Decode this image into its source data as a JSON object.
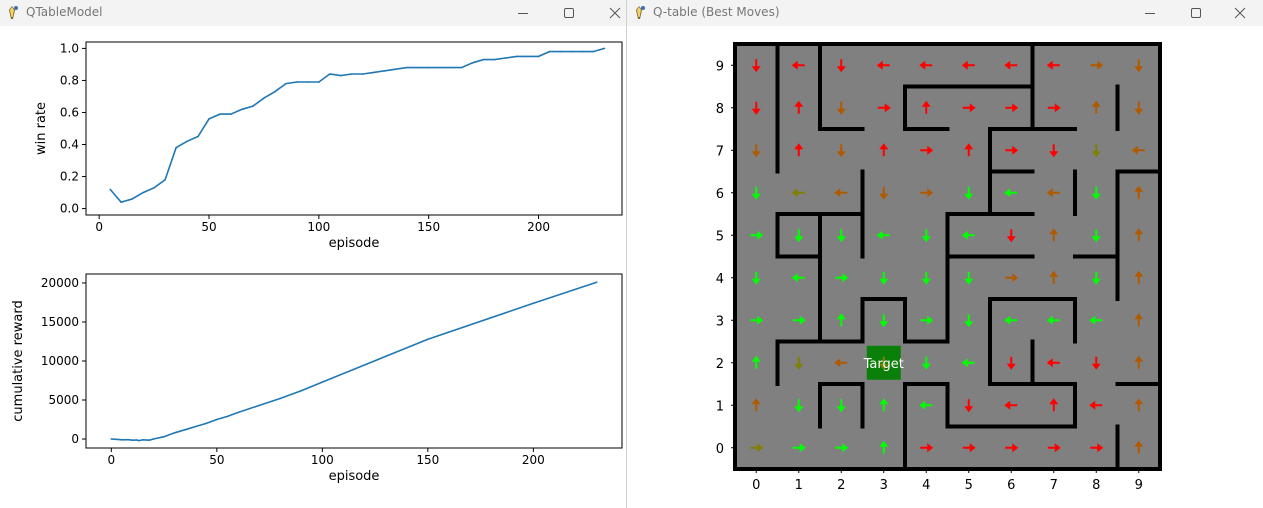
{
  "windows": [
    {
      "title": "QTableModel"
    },
    {
      "title": "Q-table (Best Moves)"
    }
  ],
  "icons": {
    "app": "python-feather-icon",
    "minimize": "minimize-icon",
    "maximize": "maximize-icon",
    "close": "close-icon"
  },
  "chart_data": [
    {
      "type": "line",
      "xlabel": "episode",
      "ylabel": "win rate",
      "xlim": [
        -6,
        238
      ],
      "ylim": [
        -0.04,
        1.04
      ],
      "xticks": [
        0,
        50,
        100,
        150,
        200
      ],
      "yticks": [
        0.0,
        0.2,
        0.4,
        0.6,
        0.8,
        1.0
      ],
      "ytick_labels": [
        "0.0",
        "0.2",
        "0.4",
        "0.6",
        "0.8",
        "1.0"
      ],
      "grid": false,
      "color": "#1f77b4",
      "x": [
        5,
        10,
        15,
        20,
        25,
        30,
        35,
        40,
        45,
        50,
        55,
        60,
        65,
        70,
        75,
        80,
        85,
        90,
        95,
        100,
        105,
        110,
        115,
        120,
        125,
        130,
        135,
        140,
        145,
        150,
        155,
        160,
        165,
        170,
        175,
        180,
        185,
        190,
        195,
        200,
        205,
        210,
        215,
        220,
        225,
        230
      ],
      "y": [
        0.12,
        0.04,
        0.06,
        0.1,
        0.13,
        0.18,
        0.38,
        0.42,
        0.45,
        0.56,
        0.59,
        0.59,
        0.62,
        0.64,
        0.69,
        0.73,
        0.78,
        0.79,
        0.79,
        0.79,
        0.84,
        0.83,
        0.84,
        0.84,
        0.85,
        0.86,
        0.87,
        0.88,
        0.88,
        0.88,
        0.88,
        0.88,
        0.88,
        0.91,
        0.93,
        0.93,
        0.94,
        0.95,
        0.95,
        0.95,
        0.98,
        0.98,
        0.98,
        0.98,
        0.98,
        1.0
      ]
    },
    {
      "type": "line",
      "xlabel": "episode",
      "ylabel": "cumulative reward",
      "xlim": [
        -12,
        242
      ],
      "ylim": [
        -1150,
        21150
      ],
      "xticks": [
        0,
        50,
        100,
        150,
        200
      ],
      "yticks": [
        0,
        5000,
        10000,
        15000,
        20000
      ],
      "ytick_labels": [
        "0",
        "5000",
        "10000",
        "15000",
        "20000"
      ],
      "grid": false,
      "color": "#1f77b4",
      "x": [
        0,
        3,
        5,
        8,
        10,
        12,
        13,
        15,
        18,
        20,
        25,
        30,
        35,
        40,
        45,
        50,
        55,
        60,
        70,
        80,
        90,
        100,
        150,
        200,
        230
      ],
      "y": [
        0,
        -50,
        -100,
        -80,
        -150,
        -120,
        -200,
        -100,
        -150,
        0,
        300,
        800,
        1200,
        1600,
        2000,
        2500,
        2900,
        3400,
        4300,
        5200,
        6200,
        7300,
        12800,
        17400,
        20100
      ]
    },
    {
      "type": "grid",
      "title": "",
      "xticks": [
        0,
        1,
        2,
        3,
        4,
        5,
        6,
        7,
        8,
        9
      ],
      "yticks": [
        0,
        1,
        2,
        3,
        4,
        5,
        6,
        7,
        8,
        9
      ],
      "target_label": "Target",
      "target_cell": [
        3,
        2
      ],
      "background": "#808080",
      "wall_color": "#000000",
      "arrow_colors": {
        "g": "#00ff00",
        "o": "#808000",
        "b": "#b05a00",
        "r": "#ff0000"
      },
      "walls": [
        [
          0.5,
          6.5,
          0.5,
          9.5
        ],
        [
          0.5,
          9.5,
          1.5,
          9.5
        ],
        [
          0.5,
          5.5,
          1.5,
          5.5
        ],
        [
          1.5,
          7.5,
          1.5,
          9.5
        ],
        [
          1.5,
          7.5,
          2.5,
          7.5
        ],
        [
          0.5,
          4.5,
          0.5,
          5.5
        ],
        [
          0.5,
          4.5,
          1.5,
          4.5
        ],
        [
          1.5,
          5.5,
          2.5,
          5.5
        ],
        [
          1.5,
          2.5,
          1.5,
          5.5
        ],
        [
          1.5,
          2.5,
          2.5,
          2.5
        ],
        [
          2.5,
          4.5,
          2.5,
          6.5
        ],
        [
          3.5,
          7.5,
          3.5,
          8.5
        ],
        [
          3.5,
          7.5,
          4.5,
          7.5
        ],
        [
          3.5,
          8.5,
          6.5,
          8.5
        ],
        [
          4.5,
          4.5,
          4.5,
          5.5
        ],
        [
          4.5,
          5.5,
          6.5,
          5.5
        ],
        [
          5.5,
          5.5,
          5.5,
          7.5
        ],
        [
          5.5,
          7.5,
          7.5,
          7.5
        ],
        [
          6.5,
          7.5,
          6.5,
          9.5
        ],
        [
          5.5,
          6.5,
          6.5,
          6.5
        ],
        [
          2.5,
          2.5,
          2.5,
          3.5
        ],
        [
          2.5,
          3.5,
          3.5,
          3.5
        ],
        [
          3.5,
          2.5,
          3.5,
          3.5
        ],
        [
          3.5,
          2.5,
          4.5,
          2.5
        ],
        [
          4.5,
          2.5,
          4.5,
          4.5
        ],
        [
          4.5,
          4.5,
          6.5,
          4.5
        ],
        [
          5.5,
          2.5,
          5.5,
          3.5
        ],
        [
          5.5,
          3.5,
          7.5,
          3.5
        ],
        [
          6.5,
          1.5,
          6.5,
          2.5
        ],
        [
          5.5,
          1.5,
          7.5,
          1.5
        ],
        [
          2.5,
          0.5,
          2.5,
          1.5
        ],
        [
          1.5,
          1.5,
          2.5,
          1.5
        ],
        [
          1.5,
          0.5,
          1.5,
          1.5
        ],
        [
          3.5,
          0.5,
          3.5,
          1.5
        ],
        [
          3.5,
          1.5,
          4.5,
          1.5
        ],
        [
          4.5,
          0.5,
          4.5,
          1.5
        ],
        [
          4.5,
          0.5,
          7.5,
          0.5
        ],
        [
          5.5,
          1.5,
          5.5,
          2.5
        ],
        [
          7.5,
          0.5,
          7.5,
          1.5
        ],
        [
          8.5,
          1.5,
          9.5,
          1.5
        ],
        [
          7.5,
          2.5,
          7.5,
          3.5
        ],
        [
          8.5,
          3.5,
          8.5,
          6.5
        ],
        [
          8.5,
          6.5,
          9.5,
          6.5
        ],
        [
          8.5,
          7.5,
          8.5,
          8.5
        ],
        [
          9.5,
          7.5,
          9.5,
          9.5
        ],
        [
          9.5,
          4.5,
          9.5,
          5.5
        ],
        [
          7.5,
          4.5,
          8.5,
          4.5
        ],
        [
          7.5,
          5.5,
          7.5,
          6.5
        ],
        [
          0.5,
          1.5,
          0.5,
          2.5
        ],
        [
          0.5,
          2.5,
          1.5,
          2.5
        ],
        [
          3.5,
          -0.5,
          3.5,
          0.5
        ],
        [
          8.5,
          -0.5,
          8.5,
          0.5
        ]
      ],
      "arrows": [
        [
          "D",
          "r"
        ],
        [
          "L",
          "r"
        ],
        [
          "D",
          "r"
        ],
        [
          "L",
          "r"
        ],
        [
          "L",
          "r"
        ],
        [
          "L",
          "r"
        ],
        [
          "L",
          "r"
        ],
        [
          "L",
          "r"
        ],
        [
          "R",
          "b"
        ],
        [
          "D",
          "b"
        ],
        [
          "D",
          "r"
        ],
        [
          "U",
          "r"
        ],
        [
          "D",
          "b"
        ],
        [
          "R",
          "r"
        ],
        [
          "U",
          "r"
        ],
        [
          "R",
          "r"
        ],
        [
          "R",
          "r"
        ],
        [
          "R",
          "r"
        ],
        [
          "U",
          "b"
        ],
        [
          "D",
          "b"
        ],
        [
          "D",
          "b"
        ],
        [
          "U",
          "r"
        ],
        [
          "D",
          "b"
        ],
        [
          "U",
          "r"
        ],
        [
          "R",
          "r"
        ],
        [
          "U",
          "r"
        ],
        [
          "R",
          "r"
        ],
        [
          "D",
          "r"
        ],
        [
          "D",
          "o"
        ],
        [
          "L",
          "b"
        ],
        [
          "D",
          "g"
        ],
        [
          "L",
          "o"
        ],
        [
          "L",
          "b"
        ],
        [
          "D",
          "b"
        ],
        [
          "R",
          "b"
        ],
        [
          "D",
          "g"
        ],
        [
          "L",
          "g"
        ],
        [
          "L",
          "b"
        ],
        [
          "D",
          "g"
        ],
        [
          "U",
          "b"
        ],
        [
          "R",
          "g"
        ],
        [
          "D",
          "g"
        ],
        [
          "D",
          "g"
        ],
        [
          "L",
          "g"
        ],
        [
          "D",
          "g"
        ],
        [
          "L",
          "g"
        ],
        [
          "D",
          "r"
        ],
        [
          "U",
          "b"
        ],
        [
          "D",
          "g"
        ],
        [
          "U",
          "b"
        ],
        [
          "D",
          "g"
        ],
        [
          "L",
          "g"
        ],
        [
          "R",
          "g"
        ],
        [
          "D",
          "g"
        ],
        [
          "D",
          "g"
        ],
        [
          "D",
          "g"
        ],
        [
          "R",
          "b"
        ],
        [
          "U",
          "b"
        ],
        [
          "D",
          "g"
        ],
        [
          "U",
          "b"
        ],
        [
          "R",
          "g"
        ],
        [
          "R",
          "g"
        ],
        [
          "U",
          "g"
        ],
        [
          "D",
          "g"
        ],
        [
          "R",
          "g"
        ],
        [
          "D",
          "g"
        ],
        [
          "L",
          "g"
        ],
        [
          "L",
          "g"
        ],
        [
          "L",
          "g"
        ],
        [
          "U",
          "b"
        ],
        [
          "U",
          "g"
        ],
        [
          "D",
          "o"
        ],
        [
          "L",
          "b"
        ],
        [
          "D",
          "o"
        ],
        [
          "D",
          "g"
        ],
        [
          "L",
          "g"
        ],
        [
          "D",
          "r"
        ],
        [
          "L",
          "r"
        ],
        [
          "D",
          "r"
        ],
        [
          "U",
          "b"
        ],
        [
          "U",
          "b"
        ],
        [
          "D",
          "g"
        ],
        [
          "D",
          "g"
        ],
        [
          "U",
          "g"
        ],
        [
          "L",
          "g"
        ],
        [
          "D",
          "r"
        ],
        [
          "L",
          "r"
        ],
        [
          "U",
          "r"
        ],
        [
          "L",
          "r"
        ],
        [
          "U",
          "b"
        ],
        [
          "R",
          "o"
        ],
        [
          "R",
          "g"
        ],
        [
          "R",
          "g"
        ],
        [
          "U",
          "g"
        ],
        [
          "R",
          "r"
        ],
        [
          "R",
          "r"
        ],
        [
          "R",
          "r"
        ],
        [
          "R",
          "r"
        ],
        [
          "R",
          "r"
        ],
        [
          "U",
          "b"
        ]
      ]
    }
  ]
}
